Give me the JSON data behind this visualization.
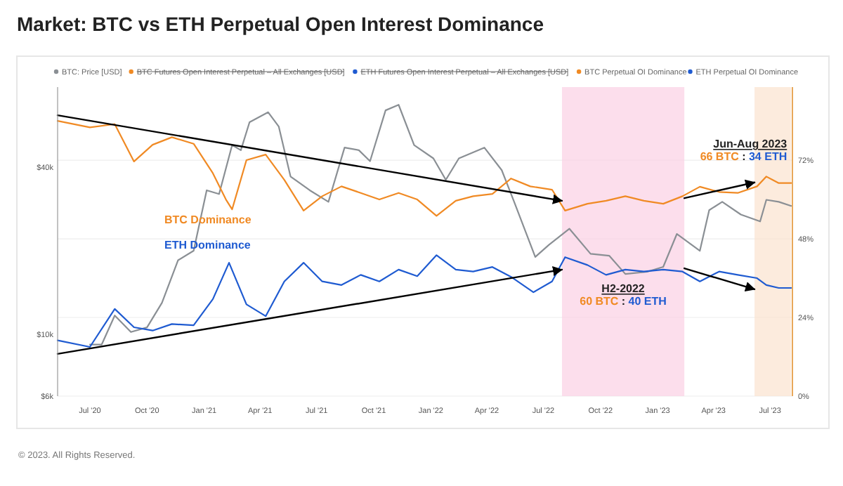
{
  "chart_data": {
    "type": "line",
    "title": "Market: BTC vs ETH Perpetual Open Interest Dominance",
    "xlim": [
      "2020-05-10",
      "2023-08-06"
    ],
    "xticks": [
      {
        "value": "2020-07-01",
        "label": "Jul '20"
      },
      {
        "value": "2020-10-01",
        "label": "Oct '20"
      },
      {
        "value": "2021-01-01",
        "label": "Jan '21"
      },
      {
        "value": "2021-04-01",
        "label": "Apr '21"
      },
      {
        "value": "2021-07-01",
        "label": "Jul '21"
      },
      {
        "value": "2021-10-01",
        "label": "Oct '21"
      },
      {
        "value": "2022-01-01",
        "label": "Jan '22"
      },
      {
        "value": "2022-04-01",
        "label": "Apr '22"
      },
      {
        "value": "2022-07-01",
        "label": "Jul '22"
      },
      {
        "value": "2022-10-01",
        "label": "Oct '22"
      },
      {
        "value": "2023-01-01",
        "label": "Jan '23"
      },
      {
        "value": "2023-04-01",
        "label": "Apr '23"
      },
      {
        "value": "2023-07-01",
        "label": "Jul '23"
      }
    ],
    "ylim": [
      6000,
      77600
    ],
    "log": "y",
    "yticks": [
      {
        "value": 6000,
        "label": "$6k"
      },
      {
        "value": 10000,
        "label": "$10k"
      },
      {
        "value": 40000,
        "label": "$40k"
      }
    ],
    "y2lim": [
      0,
      94.3
    ],
    "y2ticks": [
      {
        "value": 0,
        "label": "0%"
      },
      {
        "value": 24,
        "label": "24%"
      },
      {
        "value": 48,
        "label": "48%"
      },
      {
        "value": 72,
        "label": "72%"
      }
    ],
    "grid": true,
    "legend": "top",
    "series": [
      {
        "name": "BTC: Price [USD]",
        "color": "#8a8f94",
        "x": [
          "2020-07-01",
          "2020-07-20",
          "2020-08-10",
          "2020-09-05",
          "2020-10-01",
          "2020-10-25",
          "2020-11-20",
          "2020-12-15",
          "2021-01-05",
          "2021-01-25",
          "2021-02-15",
          "2021-03-01",
          "2021-03-15",
          "2021-04-14",
          "2021-05-01",
          "2021-05-20",
          "2021-06-20",
          "2021-07-20",
          "2021-08-15",
          "2021-09-07",
          "2021-09-25",
          "2021-10-20",
          "2021-11-10",
          "2021-12-05",
          "2022-01-05",
          "2022-01-25",
          "2022-02-15",
          "2022-03-28",
          "2022-04-25",
          "2022-05-15",
          "2022-06-18",
          "2022-07-10",
          "2022-08-12",
          "2022-09-15",
          "2022-10-15",
          "2022-11-10",
          "2022-12-15",
          "2023-01-10",
          "2023-02-01",
          "2023-03-10",
          "2023-03-25",
          "2023-04-15",
          "2023-05-15",
          "2023-06-15",
          "2023-06-25",
          "2023-07-15",
          "2023-08-04"
        ],
        "values": [
          9200,
          9200,
          11700,
          10200,
          10600,
          13000,
          18500,
          20000,
          33000,
          32000,
          48000,
          46000,
          58000,
          63000,
          56000,
          37000,
          33000,
          30000,
          47000,
          46000,
          42000,
          64000,
          67000,
          48000,
          43000,
          36000,
          43000,
          47000,
          39000,
          30000,
          19000,
          21000,
          24000,
          19500,
          19200,
          16500,
          16800,
          17500,
          23000,
          20000,
          28000,
          30000,
          27000,
          25500,
          30500,
          30000,
          29000
        ],
        "axis": "y"
      },
      {
        "name": "BTC Perpetual OI Dominance",
        "color": "#f08a24",
        "x": [
          "2020-05-10",
          "2020-07-01",
          "2020-08-10",
          "2020-09-10",
          "2020-10-10",
          "2020-11-10",
          "2020-12-15",
          "2021-01-15",
          "2021-02-05",
          "2021-02-15",
          "2021-03-10",
          "2021-04-10",
          "2021-05-10",
          "2021-06-10",
          "2021-07-10",
          "2021-08-10",
          "2021-09-10",
          "2021-10-10",
          "2021-11-10",
          "2021-12-10",
          "2022-01-10",
          "2022-02-10",
          "2022-03-10",
          "2022-04-10",
          "2022-05-10",
          "2022-06-10",
          "2022-07-15",
          "2022-08-05",
          "2022-09-10",
          "2022-10-10",
          "2022-11-10",
          "2022-12-10",
          "2023-01-10",
          "2023-02-10",
          "2023-03-10",
          "2023-04-10",
          "2023-05-10",
          "2023-06-10",
          "2023-06-25",
          "2023-07-15",
          "2023-08-04"
        ],
        "values": [
          84,
          82,
          83,
          71.6,
          76.7,
          79,
          77,
          68,
          60,
          57,
          72,
          73.7,
          66,
          56.6,
          61,
          64,
          62,
          60,
          62,
          60,
          55,
          59.6,
          61,
          61.7,
          66.4,
          64,
          63,
          56.6,
          58.7,
          59.6,
          61,
          59.6,
          58.7,
          61,
          63.9,
          62.3,
          62,
          64,
          67,
          65,
          65
        ],
        "axis": "y2"
      },
      {
        "name": "ETH Perpetual OI Dominance",
        "color": "#1f5bd1",
        "x": [
          "2020-05-10",
          "2020-07-01",
          "2020-08-10",
          "2020-09-10",
          "2020-10-10",
          "2020-11-10",
          "2020-12-15",
          "2021-01-15",
          "2021-02-10",
          "2021-03-10",
          "2021-04-10",
          "2021-05-10",
          "2021-06-10",
          "2021-07-10",
          "2021-08-10",
          "2021-09-10",
          "2021-10-10",
          "2021-11-10",
          "2021-12-10",
          "2022-01-10",
          "2022-02-10",
          "2022-03-10",
          "2022-04-10",
          "2022-05-10",
          "2022-06-15",
          "2022-07-15",
          "2022-08-05",
          "2022-09-10",
          "2022-10-10",
          "2022-11-10",
          "2022-12-10",
          "2023-01-10",
          "2023-02-10",
          "2023-03-10",
          "2023-04-10",
          "2023-05-10",
          "2023-06-10",
          "2023-06-25",
          "2023-07-15",
          "2023-08-04"
        ],
        "values": [
          17,
          15,
          26.6,
          21,
          20,
          22,
          21.6,
          29.6,
          40.7,
          28,
          24.4,
          35,
          40.7,
          35,
          33.9,
          37,
          35,
          38.6,
          36.6,
          43,
          38.6,
          38,
          39.4,
          36.4,
          31.7,
          35,
          42.4,
          40,
          37,
          38.6,
          38,
          38.6,
          38,
          35,
          38,
          37,
          36,
          33.9,
          33,
          33
        ],
        "axis": "y2"
      },
      {
        "type": "line",
        "color": "#000000",
        "x": [
          "2020-05-10",
          "2022-07-31"
        ],
        "values": [
          85.7,
          59.6
        ],
        "axis": "y2"
      },
      {
        "type": "line",
        "color": "#000000",
        "x": [
          "2020-05-10",
          "2022-07-31"
        ],
        "values": [
          12.9,
          38.6
        ],
        "axis": "y2"
      },
      {
        "type": "line",
        "color": "#000000",
        "x": [
          "2023-02-13",
          "2023-06-06"
        ],
        "values": [
          60.4,
          65.2
        ],
        "axis": "y2"
      },
      {
        "type": "line",
        "color": "#000000",
        "x": [
          "2023-02-13",
          "2023-06-06"
        ],
        "values": [
          39,
          32.6
        ],
        "axis": "y2"
      }
    ],
    "bands": [
      {
        "axis": "x",
        "from": "2022-07-31",
        "to": "2023-02-13",
        "label": "H2-2022",
        "color": "#fbd0e4"
      },
      {
        "axis": "x",
        "from": "2023-06-06",
        "to": "2023-08-04",
        "label": "Jun-Aug 2023",
        "color": "#fbe3cf"
      }
    ],
    "annotations": [
      "BTC Futures Open Interest Perpetual – All Exchanges [USD]",
      "ETH Futures Open Interest Perpetual – All Exchanges [USD]",
      "BTC Dominance",
      "ETH Dominance",
      "66 BTC : 34 ETH",
      "60 BTC : 40 ETH",
      "© 2023. All Rights Reserved."
    ]
  }
}
